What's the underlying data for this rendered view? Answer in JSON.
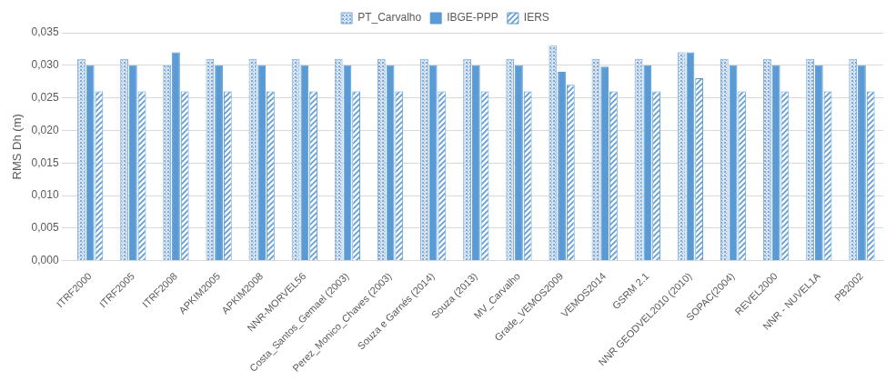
{
  "chart_data": {
    "type": "bar",
    "y_label": "RMS Dh (m)",
    "categories": [
      "ITRF2000",
      "ITRF2005",
      "ITRF2008",
      "APKIM2005",
      "APKIM2008",
      "NNR-MORVEL56",
      "Costa_Santos_Gemael (2003)",
      "Perez_Monico_Chaves (2003)",
      "Souza e Garnés (2014)",
      "Souza (2013)",
      "MV_Carvalho",
      "Grade_VEMOS2009",
      "VEMOS2014",
      "GSRM 2.1",
      "NNR GEODVEL2010 (2010)",
      "SOPAC(2004)",
      "REVEL2000",
      "NNR - NUVEL1A",
      "PB2002"
    ],
    "series": [
      {
        "name": "PT_Carvalho",
        "color": "#7fa9d6",
        "values": [
          0.031,
          0.031,
          0.03,
          0.031,
          0.031,
          0.031,
          0.031,
          0.031,
          0.031,
          0.031,
          0.031,
          0.033,
          0.031,
          0.031,
          0.032,
          0.031,
          0.031,
          0.031,
          0.031
        ]
      },
      {
        "name": "IBGE-PPP",
        "color": "#5b9bd5",
        "values": [
          0.03,
          0.03,
          0.032,
          0.03,
          0.03,
          0.03,
          0.03,
          0.03,
          0.03,
          0.03,
          0.03,
          0.029,
          0.0298,
          0.03,
          0.032,
          0.03,
          0.03,
          0.03,
          0.03
        ]
      },
      {
        "name": "IERS",
        "color": "#5b9bd5",
        "values": [
          0.026,
          0.026,
          0.026,
          0.026,
          0.026,
          0.026,
          0.026,
          0.026,
          0.026,
          0.026,
          0.026,
          0.027,
          0.026,
          0.026,
          0.028,
          0.026,
          0.026,
          0.026,
          0.026
        ]
      }
    ],
    "ylim": [
      0,
      0.035
    ],
    "yticks": [
      {
        "value": 0,
        "label": "0,000"
      },
      {
        "value": 0.005,
        "label": "0,005"
      },
      {
        "value": 0.01,
        "label": "0,010"
      },
      {
        "value": 0.015,
        "label": "0,015"
      },
      {
        "value": 0.02,
        "label": "0,020"
      },
      {
        "value": 0.025,
        "label": "0,025"
      },
      {
        "value": 0.03,
        "label": "0,030"
      },
      {
        "value": 0.035,
        "label": "0,035"
      }
    ],
    "grid": true,
    "legend": "top"
  }
}
